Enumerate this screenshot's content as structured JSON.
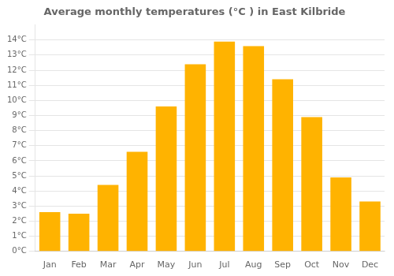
{
  "chart_data": {
    "type": "bar",
    "title": "Average monthly temperatures (°C ) in East Kilbride",
    "categories": [
      "Jan",
      "Feb",
      "Mar",
      "Apr",
      "May",
      "Jun",
      "Jul",
      "Aug",
      "Sep",
      "Oct",
      "Nov",
      "Dec"
    ],
    "values": [
      2.6,
      2.5,
      4.4,
      6.6,
      9.6,
      12.4,
      13.9,
      13.6,
      11.4,
      8.9,
      4.9,
      3.3
    ],
    "color": "#FFB300",
    "ylim": [
      0,
      15
    ],
    "yticks": [
      {
        "value": 0,
        "label": "0°C"
      },
      {
        "value": 1,
        "label": "1°C"
      },
      {
        "value": 2,
        "label": "2°C"
      },
      {
        "value": 3,
        "label": "3°C"
      },
      {
        "value": 4,
        "label": "4°C"
      },
      {
        "value": 5,
        "label": "5°C"
      },
      {
        "value": 6,
        "label": "6°C"
      },
      {
        "value": 7,
        "label": "7°C"
      },
      {
        "value": 8,
        "label": "8°C"
      },
      {
        "value": 9,
        "label": "9°C"
      },
      {
        "value": 10,
        "label": "10°C"
      },
      {
        "value": 11,
        "label": "11°C"
      },
      {
        "value": 12,
        "label": "12°C"
      },
      {
        "value": 13,
        "label": "13°C"
      },
      {
        "value": 14,
        "label": "14°C"
      }
    ],
    "grid": true
  }
}
